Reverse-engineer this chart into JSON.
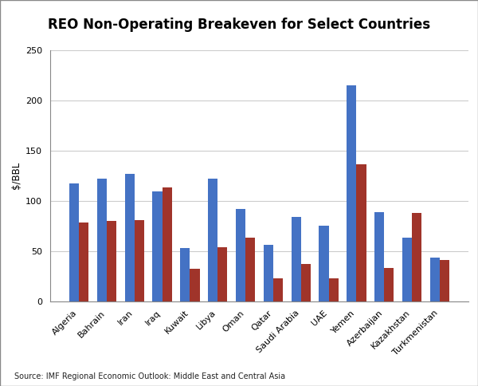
{
  "title": "REO Non-Operating Breakeven for Select Countries",
  "ylabel": "$/BBL",
  "source_text": "Source: IMF Regional Economic Outlook: Middle East and Central Asia",
  "categories": [
    "Algeria",
    "Bahrain",
    "Iran",
    "Iraq",
    "Kuwait",
    "Libya",
    "Oman",
    "Qatar",
    "Saudi Arabia",
    "UAE",
    "Yemen",
    "Azerbaijan",
    "Kazakhstan",
    "Turkmenistan"
  ],
  "values_2013": [
    117,
    122,
    127,
    109,
    53,
    122,
    92,
    56,
    84,
    75,
    215,
    89,
    63,
    43
  ],
  "values_2008": [
    78,
    80,
    81,
    113,
    32,
    54,
    63,
    23,
    37,
    23,
    136,
    33,
    88,
    41
  ],
  "color_2013": "#4472C4",
  "color_2008": "#A0342A",
  "ylim": [
    0,
    250
  ],
  "yticks": [
    0,
    50,
    100,
    150,
    200,
    250
  ],
  "background_color": "#FFFFFF",
  "grid_color": "#CCCCCC",
  "bar_width": 0.35,
  "title_fontsize": 12,
  "axis_fontsize": 8.5,
  "tick_fontsize": 8,
  "legend_fontsize": 8.5,
  "source_fontsize": 7
}
